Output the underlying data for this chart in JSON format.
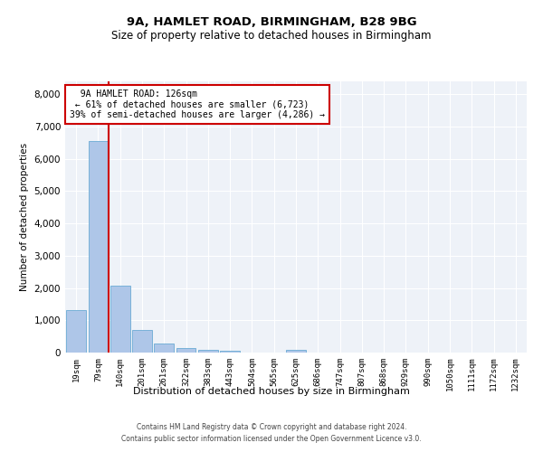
{
  "title1": "9A, HAMLET ROAD, BIRMINGHAM, B28 9BG",
  "title2": "Size of property relative to detached houses in Birmingham",
  "xlabel": "Distribution of detached houses by size in Birmingham",
  "ylabel": "Number of detached properties",
  "bar_labels": [
    "19sqm",
    "79sqm",
    "140sqm",
    "201sqm",
    "261sqm",
    "322sqm",
    "383sqm",
    "443sqm",
    "504sqm",
    "565sqm",
    "625sqm",
    "686sqm",
    "747sqm",
    "807sqm",
    "868sqm",
    "929sqm",
    "990sqm",
    "1050sqm",
    "1111sqm",
    "1172sqm",
    "1232sqm"
  ],
  "bar_values": [
    1320,
    6560,
    2080,
    690,
    280,
    135,
    75,
    55,
    0,
    0,
    80,
    0,
    0,
    0,
    0,
    0,
    0,
    0,
    0,
    0,
    0
  ],
  "bar_color": "#aec6e8",
  "bar_edge_color": "#6aaad4",
  "vline_x": 1.47,
  "property_line_label": "9A HAMLET ROAD: 126sqm",
  "annotation_line1": "← 61% of detached houses are smaller (6,723)",
  "annotation_line2": "39% of semi-detached houses are larger (4,286) →",
  "annotation_box_color": "#ffffff",
  "annotation_box_edge_color": "#cc0000",
  "vline_color": "#cc0000",
  "ylim": [
    0,
    8400
  ],
  "yticks": [
    0,
    1000,
    2000,
    3000,
    4000,
    5000,
    6000,
    7000,
    8000
  ],
  "background_color": "#eef2f8",
  "grid_color": "#ffffff",
  "footer1": "Contains HM Land Registry data © Crown copyright and database right 2024.",
  "footer2": "Contains public sector information licensed under the Open Government Licence v3.0."
}
